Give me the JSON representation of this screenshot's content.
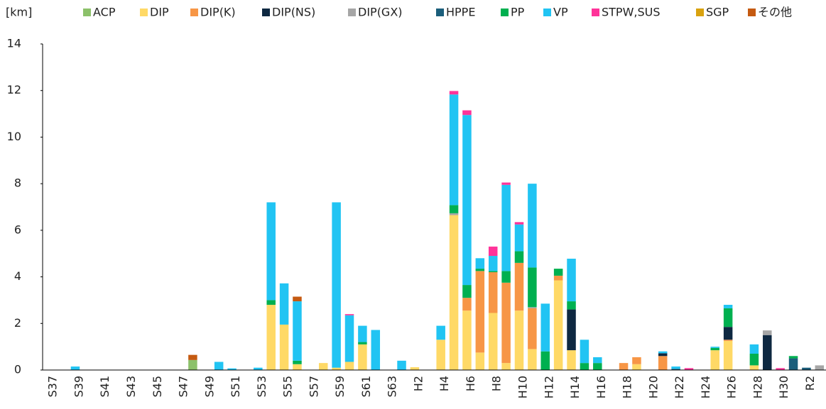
{
  "chart_data": {
    "type": "stacked_bar",
    "y_unit_label": "[km]",
    "categories": [
      "S37",
      null,
      "S39",
      null,
      "S41",
      null,
      "S43",
      null,
      "S45",
      null,
      "S47",
      null,
      "S49",
      null,
      "S51",
      null,
      "S53",
      null,
      "S55",
      null,
      "S57",
      null,
      "S59",
      null,
      "S61",
      null,
      "S63",
      null,
      "H2",
      null,
      "H4",
      null,
      "H6",
      null,
      "H8",
      null,
      "H10",
      null,
      "H12",
      null,
      "H14",
      null,
      "H16",
      null,
      "H18",
      null,
      "H20",
      null,
      "H22",
      null,
      "H24",
      null,
      "H26",
      null,
      "H28",
      null,
      "H30",
      null,
      "R2",
      null
    ],
    "ylim": [
      0,
      14
    ],
    "yticks": [
      0,
      2,
      4,
      6,
      8,
      10,
      12,
      14
    ],
    "grid": false,
    "legend": "top",
    "series": [
      {
        "name": "ACP",
        "color": "#8cc16a",
        "values": [
          0,
          0,
          0,
          0,
          0,
          0,
          0,
          0,
          0,
          0,
          0,
          0.43,
          0,
          0,
          0,
          0,
          0,
          0,
          0,
          0,
          0,
          0,
          0,
          0,
          0,
          0,
          0,
          0,
          0,
          0,
          0,
          0,
          0,
          0,
          0,
          0,
          0,
          0,
          0,
          0,
          0,
          0,
          0,
          0,
          0,
          0,
          0,
          0,
          0,
          0,
          0,
          0,
          0,
          0,
          0,
          0,
          0,
          0,
          0,
          0
        ]
      },
      {
        "name": "DIP",
        "color": "#ffd966",
        "values": [
          0,
          0,
          0,
          0,
          0,
          0,
          0,
          0,
          0,
          0,
          0,
          0,
          0,
          0,
          0,
          0,
          0,
          2.8,
          1.95,
          0.25,
          0,
          0.3,
          0.1,
          0.35,
          1.1,
          0,
          0,
          0,
          0.12,
          0,
          1.3,
          6.65,
          2.55,
          0.75,
          2.45,
          0.3,
          2.55,
          0.9,
          0,
          3.85,
          0.85,
          0,
          0,
          0,
          0,
          0.25,
          0,
          0,
          0,
          0,
          0,
          0.85,
          1.25,
          0,
          0.2,
          0,
          0,
          0,
          0,
          0
        ]
      },
      {
        "name": "DIP(K)",
        "color": "#f79646",
        "values": [
          0,
          0,
          0,
          0,
          0,
          0,
          0,
          0,
          0,
          0,
          0,
          0,
          0,
          0,
          0,
          0,
          0,
          0,
          0,
          0,
          0,
          0,
          0,
          0,
          0,
          0,
          0,
          0,
          0,
          0,
          0,
          0,
          0.55,
          3.5,
          1.75,
          3.45,
          2.05,
          1.75,
          0,
          0.2,
          0,
          0,
          0,
          0,
          0.3,
          0.3,
          0,
          0.6,
          0,
          0,
          0,
          0,
          0.05,
          0,
          0,
          0,
          0,
          0,
          0,
          0
        ]
      },
      {
        "name": "DIP(NS)",
        "color": "#0e2841",
        "values": [
          0,
          0,
          0,
          0,
          0,
          0,
          0,
          0,
          0,
          0,
          0,
          0,
          0,
          0,
          0,
          0,
          0,
          0,
          0,
          0,
          0,
          0,
          0,
          0,
          0,
          0,
          0,
          0,
          0,
          0,
          0,
          0,
          0,
          0,
          0,
          0,
          0,
          0,
          0,
          0,
          1.75,
          0,
          0,
          0,
          0,
          0,
          0,
          0.12,
          0,
          0,
          0,
          0,
          0.55,
          0,
          0,
          1.5,
          0,
          0,
          0,
          0
        ]
      },
      {
        "name": "DIP(GX)",
        "color": "#a6a6a6",
        "values": [
          0,
          0,
          0,
          0,
          0,
          0,
          0,
          0,
          0,
          0,
          0,
          0,
          0,
          0,
          0,
          0,
          0,
          0,
          0,
          0,
          0,
          0,
          0,
          0,
          0,
          0,
          0,
          0,
          0,
          0,
          0,
          0.08,
          0,
          0,
          0,
          0,
          0,
          0.05,
          0,
          0,
          0,
          0,
          0,
          0,
          0,
          0,
          0,
          0,
          0,
          0,
          0,
          0,
          0,
          0,
          0,
          0.2,
          0,
          0,
          0,
          0.2
        ]
      },
      {
        "name": "HPPE",
        "color": "#1b5e7b",
        "values": [
          0,
          0,
          0,
          0,
          0,
          0,
          0,
          0,
          0,
          0,
          0,
          0,
          0,
          0,
          0,
          0,
          0,
          0,
          0,
          0,
          0,
          0,
          0,
          0,
          0,
          0,
          0,
          0,
          0,
          0,
          0,
          0,
          0,
          0,
          0,
          0,
          0,
          0,
          0,
          0,
          0,
          0,
          0,
          0,
          0,
          0,
          0,
          0,
          0.05,
          0,
          0,
          0,
          0,
          0,
          0,
          0,
          0,
          0.5,
          0.1,
          0
        ]
      },
      {
        "name": "PP",
        "color": "#00b050",
        "values": [
          0,
          0,
          0,
          0,
          0,
          0,
          0,
          0,
          0,
          0,
          0,
          0,
          0,
          0,
          0,
          0,
          0,
          0.2,
          0,
          0.15,
          0,
          0,
          0,
          0,
          0.1,
          0,
          0,
          0,
          0,
          0,
          0,
          0.35,
          0.55,
          0.1,
          0.05,
          0.5,
          0.5,
          1.7,
          0.8,
          0.3,
          0.35,
          0.3,
          0.3,
          0,
          0,
          0,
          0,
          0,
          0,
          0,
          0,
          0.1,
          0.8,
          0,
          0.5,
          0,
          0,
          0.1,
          0,
          0
        ]
      },
      {
        "name": "VP",
        "color": "#21c4f3",
        "values": [
          0,
          0,
          0.15,
          0,
          0,
          0,
          0,
          0,
          0,
          0,
          0,
          0,
          0,
          0.35,
          0.07,
          0,
          0.1,
          4.2,
          1.77,
          2.55,
          0,
          0,
          7.1,
          2.0,
          0.7,
          1.72,
          0,
          0.4,
          0,
          0,
          0.6,
          4.75,
          7.3,
          0.45,
          0.65,
          3.7,
          1.15,
          3.6,
          2.05,
          0,
          1.83,
          1.0,
          0.25,
          0,
          0,
          0,
          0,
          0.08,
          0.1,
          0,
          0,
          0.05,
          0.15,
          0,
          0.4,
          0,
          0,
          0,
          0,
          0
        ]
      },
      {
        "name": "STPW,SUS",
        "color": "#ff3399",
        "values": [
          0,
          0,
          0,
          0,
          0,
          0,
          0,
          0,
          0,
          0,
          0,
          0,
          0,
          0,
          0,
          0,
          0,
          0,
          0,
          0,
          0,
          0,
          0,
          0.05,
          0,
          0,
          0,
          0,
          0,
          0,
          0,
          0.15,
          0.2,
          0,
          0.4,
          0.1,
          0.1,
          0,
          0,
          0,
          0,
          0,
          0,
          0,
          0,
          0,
          0,
          0,
          0,
          0.08,
          0,
          0,
          0,
          0,
          0,
          0,
          0.08,
          0,
          0,
          0
        ]
      },
      {
        "name": "SGP",
        "color": "#d9a20f",
        "values": [
          0,
          0,
          0,
          0,
          0,
          0,
          0,
          0,
          0,
          0,
          0,
          0,
          0,
          0,
          0,
          0,
          0,
          0,
          0,
          0,
          0,
          0,
          0,
          0,
          0,
          0,
          0,
          0,
          0,
          0,
          0,
          0,
          0,
          0,
          0,
          0,
          0,
          0,
          0,
          0,
          0,
          0,
          0,
          0,
          0,
          0,
          0,
          0,
          0,
          0,
          0,
          0,
          0,
          0,
          0,
          0,
          0,
          0,
          0,
          0
        ]
      },
      {
        "name": "その他",
        "color": "#c55a11",
        "values": [
          0,
          0,
          0,
          0,
          0,
          0,
          0,
          0,
          0,
          0,
          0,
          0.22,
          0,
          0,
          0,
          0,
          0,
          0,
          0,
          0.2,
          0,
          0,
          0,
          0,
          0,
          0,
          0,
          0,
          0,
          0,
          0,
          0,
          0,
          0,
          0,
          0,
          0,
          0,
          0,
          0,
          0,
          0,
          0,
          0,
          0,
          0,
          0,
          0,
          0,
          0,
          0,
          0,
          0,
          0,
          0,
          0,
          0,
          0,
          0,
          0
        ]
      }
    ]
  }
}
